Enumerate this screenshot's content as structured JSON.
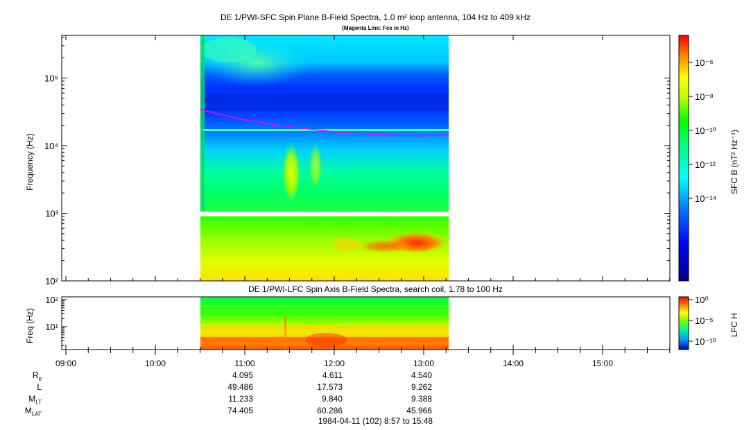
{
  "titles": {
    "main": "DE 1/PWI-SFC  Spin Plane B-Field Spectra, 1.0 m² loop antenna, 104 Hz to 409 kHz",
    "subtitle": "(Magenta Line: Fce in Hz)",
    "lower": "DE 1/PWI-LFC  Spin Axis B-Field Spectra, search coil, 1.78 to 100 Hz",
    "footer": "1984-04-11 (102) 8:57 to 15:48"
  },
  "colors": {
    "fce_line": "#ff00ff",
    "background": "#ffffff"
  },
  "chart_data": [
    {
      "type": "heatmap",
      "panel": "upper",
      "ylabel": "Frequency (Hz)",
      "yscale": "log",
      "ylim": [
        100,
        409000
      ],
      "xlim": [
        "08:57",
        "15:48"
      ],
      "data_span": [
        "10:30",
        "13:17"
      ],
      "yticks": [
        "10²",
        "10³",
        "10⁴",
        "10⁵"
      ],
      "colorbar": {
        "label": "SFC B (nT² Hz⁻¹)",
        "scale": "log",
        "range": [
          1e-15,
          1e-05
        ],
        "ticks": [
          "10⁻⁶",
          "10⁻⁸",
          "10⁻¹⁰",
          "10⁻¹²",
          "10⁻¹⁴"
        ]
      },
      "fce_line": {
        "name": "Fce in Hz",
        "x": [
          "10:30",
          "11:00",
          "11:30",
          "12:00",
          "12:30",
          "13:00",
          "13:17"
        ],
        "y": [
          34000,
          24000,
          19000,
          16000,
          14500,
          14000,
          14500
        ]
      }
    },
    {
      "type": "heatmap",
      "panel": "lower",
      "ylabel": "Freq (Hz)",
      "yscale": "log",
      "ylim": [
        1.78,
        100
      ],
      "data_span": [
        "10:30",
        "13:17"
      ],
      "yticks": [
        "10²",
        "10¹"
      ],
      "colorbar": {
        "label": "LFC H",
        "scale": "log",
        "ticks": [
          "10⁰",
          "10⁻⁵",
          "10⁻¹⁰"
        ]
      }
    }
  ],
  "xaxis": {
    "ticks": [
      "09:00",
      "10:00",
      "11:00",
      "12:00",
      "13:00",
      "14:00",
      "15:00"
    ]
  },
  "ephemeris": {
    "labels": [
      "Re",
      "L",
      "MLT",
      "MLAT"
    ],
    "rows": [
      {
        "label": "Re",
        "values": [
          "4.095",
          "4.611",
          "4.540"
        ]
      },
      {
        "label": "L",
        "values": [
          "49.486",
          "17.573",
          "9.262"
        ]
      },
      {
        "label": "MLT",
        "values": [
          "11.233",
          "9.840",
          "9.388"
        ]
      },
      {
        "label": "MLAT",
        "values": [
          "74.405",
          "60.286",
          "45.966"
        ]
      }
    ]
  }
}
